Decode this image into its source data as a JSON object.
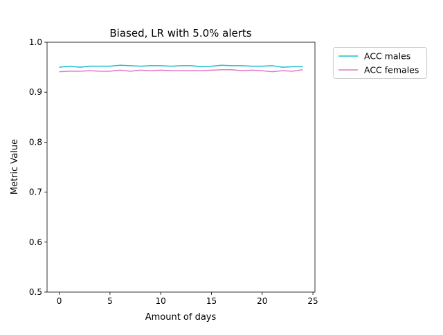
{
  "chart_data": {
    "type": "line",
    "title": "Biased, LR with 5.0% alerts",
    "xlabel": "Amount of days",
    "ylabel": "Metric Value",
    "xlim": [
      -1.2,
      25.2
    ],
    "ylim": [
      0.5,
      1.0
    ],
    "xticks": [
      0,
      5,
      10,
      15,
      20,
      25
    ],
    "xtick_labels": [
      "0",
      "5",
      "10",
      "15",
      "20",
      "25"
    ],
    "yticks": [
      0.5,
      0.6,
      0.7,
      0.8,
      0.9,
      1.0
    ],
    "ytick_labels": [
      "0.5",
      "0.6",
      "0.7",
      "0.8",
      "0.9",
      "1.0"
    ],
    "grid": false,
    "legend_position": "outside-right-top",
    "x": [
      0,
      1,
      2,
      3,
      4,
      5,
      6,
      7,
      8,
      9,
      10,
      11,
      12,
      13,
      14,
      15,
      16,
      17,
      18,
      19,
      20,
      21,
      22,
      23,
      24
    ],
    "series": [
      {
        "name": "ACC males",
        "color": "#17becf",
        "values": [
          0.95,
          0.952,
          0.95,
          0.952,
          0.952,
          0.952,
          0.954,
          0.953,
          0.952,
          0.953,
          0.953,
          0.952,
          0.953,
          0.953,
          0.951,
          0.952,
          0.954,
          0.953,
          0.953,
          0.952,
          0.952,
          0.953,
          0.95,
          0.951,
          0.951
        ]
      },
      {
        "name": "ACC females",
        "color": "#e377c2",
        "values": [
          0.941,
          0.942,
          0.942,
          0.943,
          0.942,
          0.942,
          0.944,
          0.942,
          0.944,
          0.943,
          0.944,
          0.943,
          0.943,
          0.943,
          0.943,
          0.944,
          0.945,
          0.945,
          0.943,
          0.944,
          0.943,
          0.941,
          0.943,
          0.942,
          0.945
        ]
      }
    ]
  }
}
